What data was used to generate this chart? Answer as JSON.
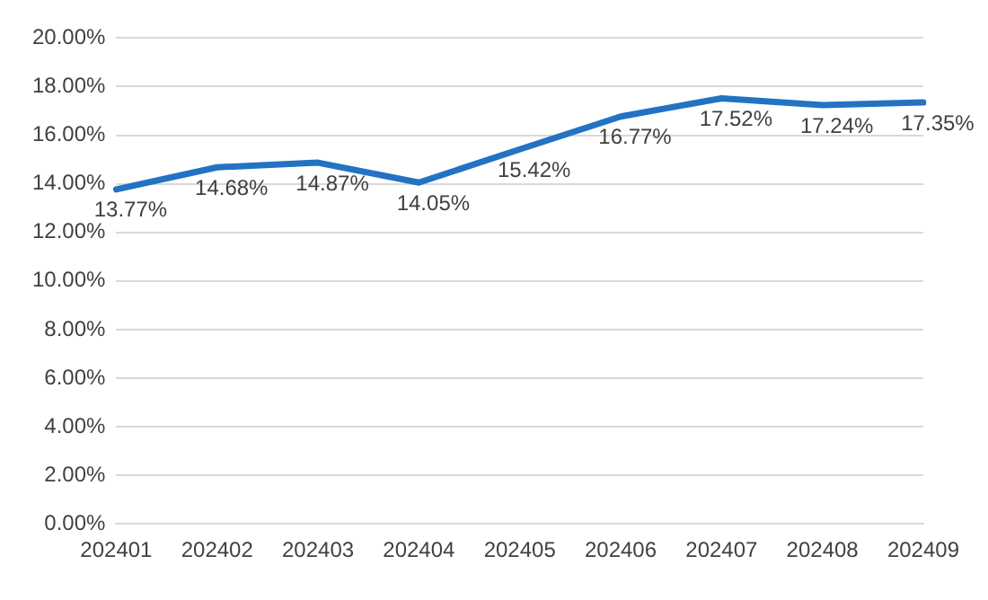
{
  "chart_data": {
    "type": "line",
    "categories": [
      "202401",
      "202402",
      "202403",
      "202404",
      "202405",
      "202406",
      "202407",
      "202408",
      "202409"
    ],
    "series": [
      {
        "color": "#2372c4",
        "values": [
          13.77,
          14.68,
          14.87,
          14.05,
          15.42,
          16.77,
          17.52,
          17.24,
          17.35
        ],
        "value_labels": [
          "13.77%",
          "14.68%",
          "14.87%",
          "14.05%",
          "15.42%",
          "16.77%",
          "17.52%",
          "17.24%",
          "17.35%"
        ]
      }
    ],
    "ylim": [
      0,
      20
    ],
    "yticks": [
      {
        "value": 0,
        "label": "0.00%"
      },
      {
        "value": 2,
        "label": "2.00%"
      },
      {
        "value": 4,
        "label": "4.00%"
      },
      {
        "value": 6,
        "label": "6.00%"
      },
      {
        "value": 8,
        "label": "8.00%"
      },
      {
        "value": 10,
        "label": "10.00%"
      },
      {
        "value": 12,
        "label": "12.00%"
      },
      {
        "value": 14,
        "label": "14.00%"
      },
      {
        "value": 16,
        "label": "16.00%"
      },
      {
        "value": 18,
        "label": "18.00%"
      },
      {
        "value": 20,
        "label": "20.00%"
      }
    ],
    "grid": "y",
    "marker": "none",
    "line_style": "solid"
  }
}
